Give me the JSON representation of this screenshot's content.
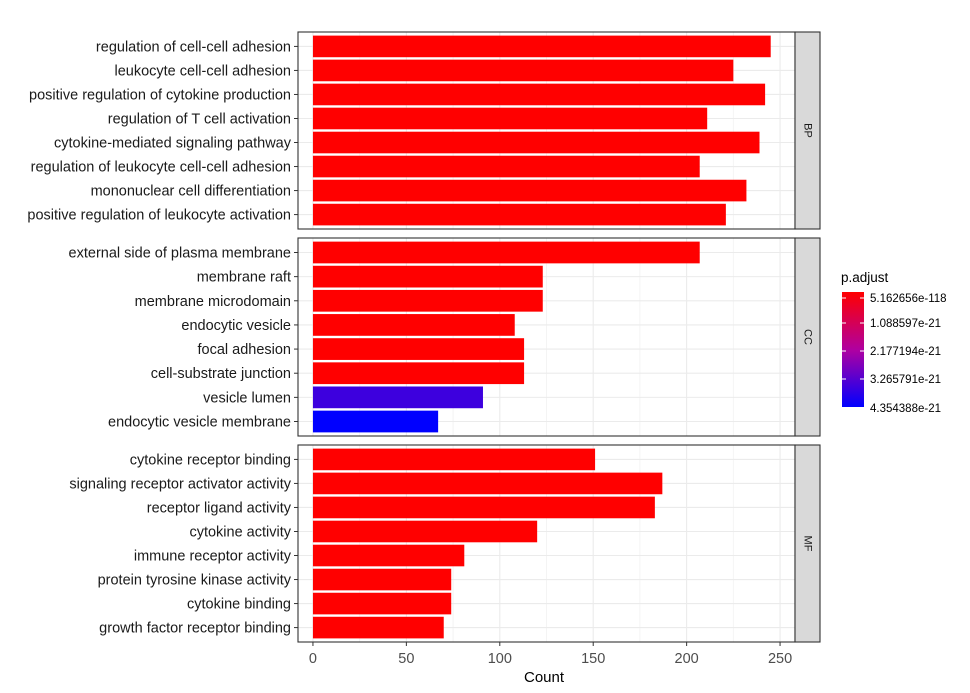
{
  "chart_data": {
    "type": "bar",
    "orientation": "horizontal",
    "xlabel": "Count",
    "xlim": [
      -8,
      258
    ],
    "xticks": [
      0,
      50,
      100,
      150,
      200,
      250
    ],
    "grid": true,
    "facets": [
      {
        "name": "BP",
        "categories": [
          "regulation of cell-cell adhesion",
          "leukocyte cell-cell adhesion",
          "positive regulation of cytokine production",
          "regulation of T cell activation",
          "cytokine-mediated signaling pathway",
          "regulation of leukocyte cell-cell adhesion",
          "mononuclear cell differentiation",
          "positive regulation of leukocyte activation"
        ],
        "values": [
          245,
          225,
          242,
          211,
          239,
          207,
          232,
          221
        ],
        "p_adjust": [
          5.162656e-118,
          5.162656e-118,
          5.162656e-118,
          5.162656e-118,
          5.162656e-118,
          5.162656e-118,
          5.162656e-118,
          5.162656e-118
        ]
      },
      {
        "name": "CC",
        "categories": [
          "external side of plasma membrane",
          "membrane raft",
          "membrane microdomain",
          "endocytic vesicle",
          "focal adhesion",
          "cell-substrate junction",
          "vesicle lumen",
          "endocytic vesicle membrane"
        ],
        "values": [
          207,
          123,
          123,
          108,
          113,
          113,
          91,
          67
        ],
        "p_adjust": [
          5.162656e-118,
          5.162656e-118,
          5.162656e-118,
          5.162656e-118,
          5.162656e-118,
          5.162656e-118,
          3.6e-21,
          4.354388e-21
        ]
      },
      {
        "name": "MF",
        "categories": [
          "cytokine receptor binding",
          "signaling receptor activator activity",
          "receptor ligand activity",
          "cytokine activity",
          "immune receptor activity",
          "protein tyrosine kinase activity",
          "cytokine binding",
          "growth factor receptor binding"
        ],
        "values": [
          151,
          187,
          183,
          120,
          81,
          74,
          74,
          70
        ],
        "p_adjust": [
          5.162656e-118,
          5.162656e-118,
          5.162656e-118,
          5.162656e-118,
          5.162656e-118,
          5.162656e-118,
          5.162656e-118,
          5.162656e-118
        ]
      }
    ],
    "legend": {
      "title": "p.adjust",
      "placement": "right",
      "labels": [
        "5.162656e-118",
        "1.088597e-21",
        "2.177194e-21",
        "3.265791e-21",
        "4.354388e-21"
      ],
      "min": 5.162656e-118,
      "max": 4.354388e-21,
      "low_color": "#ff0000",
      "high_color": "#0000ff"
    }
  }
}
